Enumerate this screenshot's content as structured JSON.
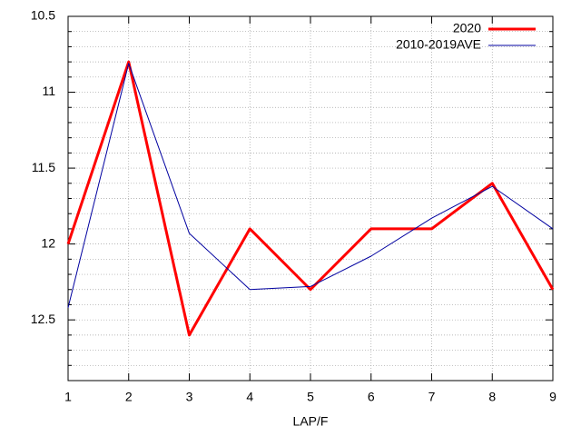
{
  "chart_data": {
    "type": "line",
    "x": [
      1,
      2,
      3,
      4,
      5,
      6,
      7,
      8,
      9
    ],
    "xlabel": "LAP/F",
    "xlim": [
      1,
      9
    ],
    "xticks": [
      1,
      2,
      3,
      4,
      5,
      6,
      7,
      8,
      9
    ],
    "ylim": [
      10.5,
      12.9
    ],
    "y_reversed": true,
    "yticks": [
      10.5,
      11,
      11.5,
      12,
      12.5
    ],
    "yminorticks": [
      10.6,
      10.7,
      10.8,
      10.9,
      11.1,
      11.2,
      11.3,
      11.4,
      11.6,
      11.7,
      11.8,
      11.9,
      12.1,
      12.2,
      12.3,
      12.4,
      12.6,
      12.7,
      12.8
    ],
    "grid": true,
    "legend": "top-right",
    "series": [
      {
        "name": "2020",
        "color": "#ff0000",
        "width": 3,
        "values": [
          12.0,
          10.8,
          12.6,
          11.9,
          12.3,
          11.9,
          11.9,
          11.6,
          12.3
        ]
      },
      {
        "name": "2010-2019AVE",
        "color": "#0000a0",
        "width": 1,
        "values": [
          12.42,
          10.81,
          11.93,
          12.3,
          12.28,
          12.08,
          11.83,
          11.62,
          11.9
        ]
      }
    ]
  }
}
